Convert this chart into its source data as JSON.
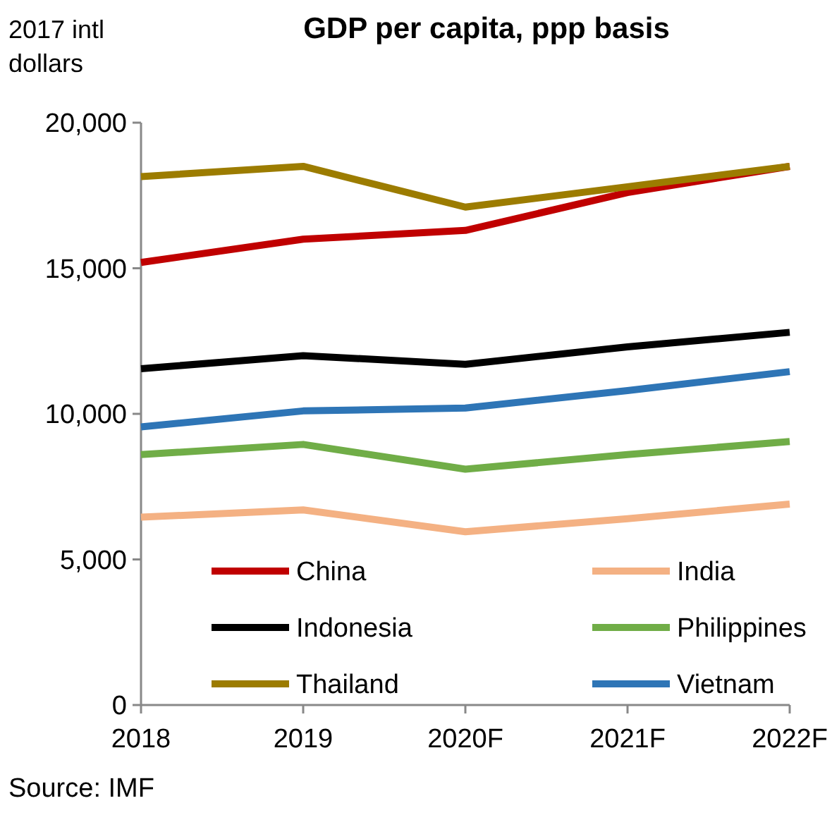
{
  "chart_data": {
    "type": "line",
    "title": "GDP per capita, ppp basis",
    "ylabel": "2017 intl dollars",
    "categories": [
      "2018",
      "2019",
      "2020F",
      "2021F",
      "2022F"
    ],
    "series": [
      {
        "name": "China",
        "color": "#c00000",
        "values": [
          15200,
          16000,
          16300,
          17600,
          18500
        ]
      },
      {
        "name": "India",
        "color": "#f4b183",
        "values": [
          6450,
          6700,
          5950,
          6400,
          6900
        ]
      },
      {
        "name": "Indonesia",
        "color": "#000000",
        "values": [
          11550,
          12000,
          11700,
          12300,
          12800
        ]
      },
      {
        "name": "Philippines",
        "color": "#70ad47",
        "values": [
          8600,
          8950,
          8100,
          8600,
          9050
        ]
      },
      {
        "name": "Thailand",
        "color": "#9c7c00",
        "values": [
          18150,
          18500,
          17100,
          17800,
          18500
        ]
      },
      {
        "name": "Vietnam",
        "color": "#2e75b6",
        "values": [
          9550,
          10100,
          10200,
          10800,
          11450
        ]
      }
    ],
    "ylim": [
      0,
      20000
    ],
    "yticks": [
      {
        "value": 0,
        "label": "0"
      },
      {
        "value": 5000,
        "label": "5,000"
      },
      {
        "value": 10000,
        "label": "10,000"
      },
      {
        "value": 15000,
        "label": "15,000"
      },
      {
        "value": 20000,
        "label": "20,000"
      }
    ],
    "grid": false,
    "legend": "bottom",
    "line_style": "solid",
    "annotations": [
      "Source: IMF"
    ]
  }
}
